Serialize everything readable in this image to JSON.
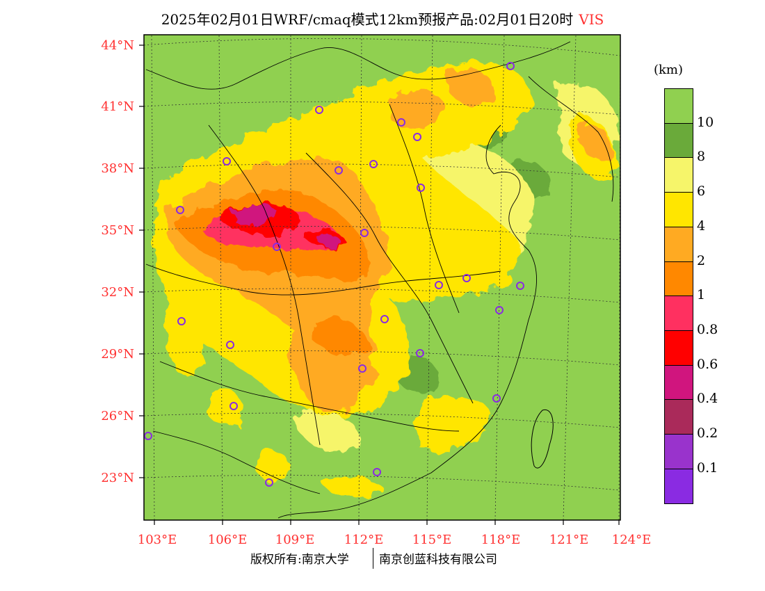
{
  "title": {
    "text": "2025年02月01日WRF/cmaq模式12km预报产品:02月01日20时",
    "variable": "VIS"
  },
  "map": {
    "lat_labels": [
      "44°N",
      "41°N",
      "38°N",
      "35°N",
      "32°N",
      "29°N",
      "26°N",
      "23°N"
    ],
    "lon_labels": [
      "103°E",
      "106°E",
      "109°E",
      "112°E",
      "115°E",
      "118°E",
      "121°E",
      "124°E"
    ],
    "colors": {
      "ocean": "#90d050",
      "land_good": "#90d050",
      "vis_8": "#6aaa3a",
      "vis_6": "#f6f56a",
      "vis_4": "#ffe600",
      "vis_2": "#ffaa22",
      "vis_1": "#ff8800",
      "vis_08": "#ff3060",
      "vis_06": "#ff0000",
      "vis_04": "#d0157e",
      "vis_02": "#aa2a5a",
      "station": "#8a2be2"
    }
  },
  "legend": {
    "unit": "(km)",
    "bins": [
      {
        "label": "10",
        "color": "#90d050"
      },
      {
        "label": "8",
        "color": "#6aaa3a"
      },
      {
        "label": "6",
        "color": "#f6f56a"
      },
      {
        "label": "4",
        "color": "#ffe600"
      },
      {
        "label": "2",
        "color": "#ffaa22"
      },
      {
        "label": "1",
        "color": "#ff8800"
      },
      {
        "label": "0.8",
        "color": "#ff3060"
      },
      {
        "label": "0.6",
        "color": "#ff0000"
      },
      {
        "label": "0.4",
        "color": "#d0157e"
      },
      {
        "label": "0.2",
        "color": "#aa2a5a"
      },
      {
        "label": "0.1",
        "color": "#9933cc"
      },
      {
        "label": "",
        "color": "#8a2be2"
      }
    ]
  },
  "footer": {
    "left": "版权所有:南京大学",
    "right": "南京创蓝科技有限公司"
  }
}
